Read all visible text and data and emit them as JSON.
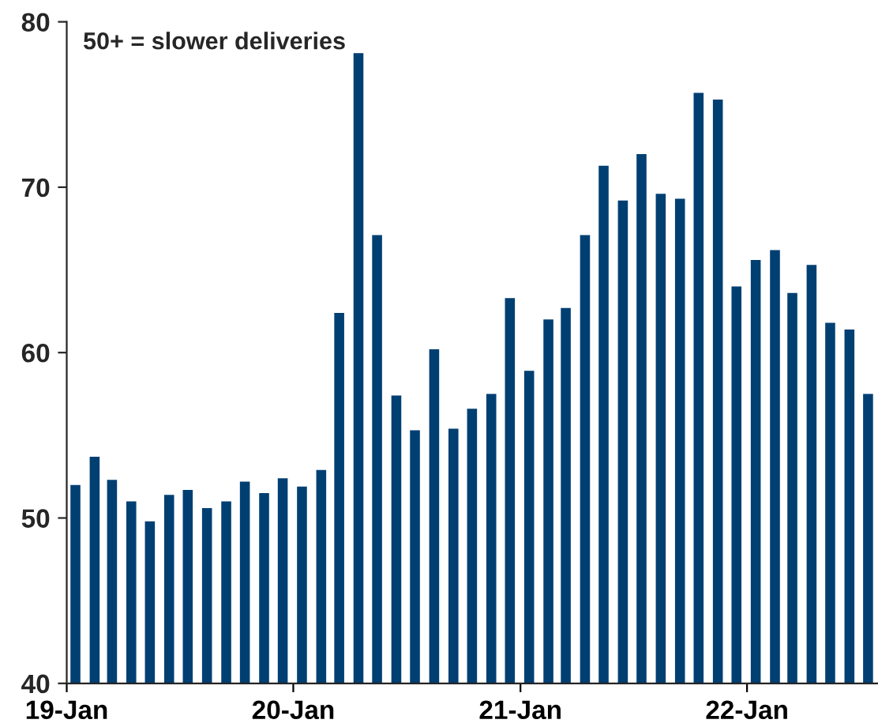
{
  "chart_data": {
    "type": "bar",
    "x": [
      "2019-01-15",
      "2019-02-15",
      "2019-03-15",
      "2019-04-15",
      "2019-05-15",
      "2019-06-15",
      "2019-07-15",
      "2019-08-15",
      "2019-09-15",
      "2019-10-15",
      "2019-11-15",
      "2019-12-15",
      "2020-01-15",
      "2020-02-15",
      "2020-03-15",
      "2020-04-15",
      "2020-05-15",
      "2020-06-15",
      "2020-07-15",
      "2020-08-15",
      "2020-09-15",
      "2020-10-15",
      "2020-11-15",
      "2020-12-15",
      "2021-01-15",
      "2021-02-15",
      "2021-03-15",
      "2021-04-15",
      "2021-05-15",
      "2021-06-15",
      "2021-07-15",
      "2021-08-15",
      "2021-09-15",
      "2021-10-15",
      "2021-11-15",
      "2021-12-15",
      "2022-01-15",
      "2022-02-15",
      "2022-03-15",
      "2022-04-15",
      "2022-05-15",
      "2022-06-15",
      "2022-07-15"
    ],
    "values": [
      52.0,
      53.7,
      52.3,
      51.0,
      49.8,
      51.4,
      51.7,
      50.6,
      51.0,
      52.2,
      51.5,
      52.4,
      51.9,
      52.9,
      62.4,
      78.1,
      67.1,
      57.4,
      55.3,
      60.2,
      55.4,
      56.6,
      57.5,
      63.3,
      58.9,
      62.0,
      62.7,
      67.1,
      71.3,
      69.2,
      72.0,
      69.6,
      69.3,
      75.7,
      75.3,
      64.0,
      65.6,
      66.2,
      63.6,
      65.3,
      61.8,
      61.4,
      57.5
    ],
    "color": "#003f72",
    "annotations": [
      "50+ = slower deliveries"
    ],
    "xlim": [
      "2019-01-01",
      "2022-07-31"
    ],
    "xticks": [
      {
        "value": "2019-01-01",
        "label": "19-Jan"
      },
      {
        "value": "2020-01-01",
        "label": "20-Jan"
      },
      {
        "value": "2021-01-01",
        "label": "21-Jan"
      },
      {
        "value": "2022-01-01",
        "label": "22-Jan"
      }
    ],
    "ylim": [
      40,
      80
    ],
    "yticks": [
      40,
      50,
      60,
      70,
      80
    ],
    "grid": false,
    "legend": false
  }
}
